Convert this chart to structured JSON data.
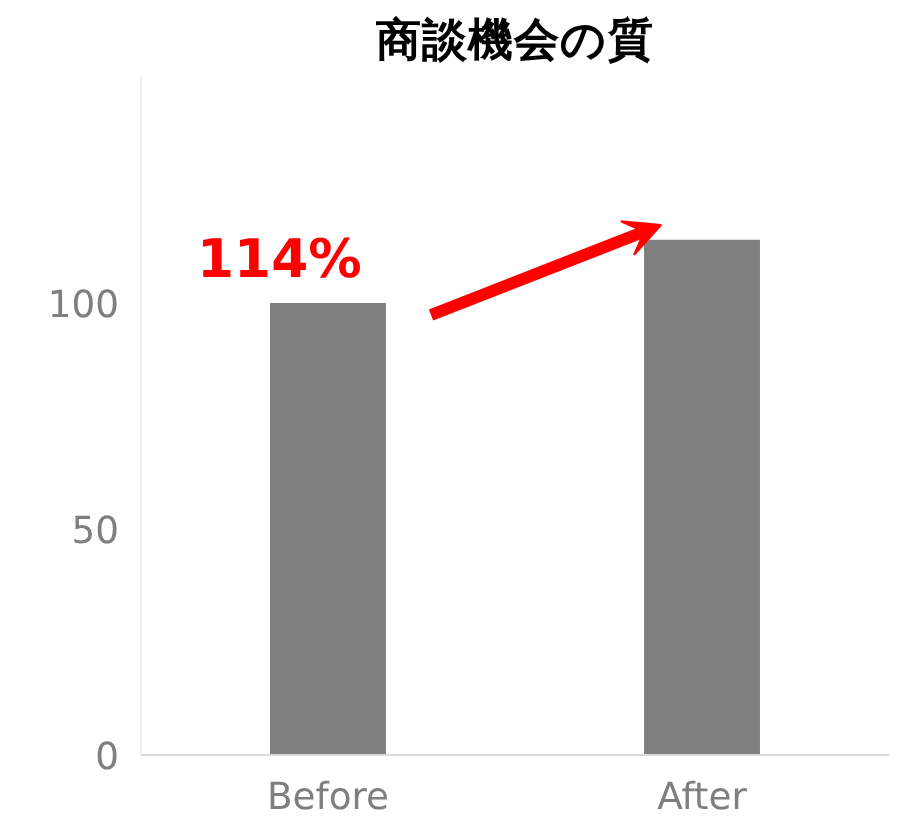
{
  "chart_data": {
    "type": "bar",
    "title": "商談機会の質",
    "categories": [
      "Before",
      "After"
    ],
    "values": [
      100,
      114
    ],
    "color": "#7f7f7f",
    "ylim": [
      0,
      150
    ],
    "yticks": [
      0,
      50,
      100
    ],
    "grid": false,
    "annotations": [
      "114%"
    ]
  }
}
